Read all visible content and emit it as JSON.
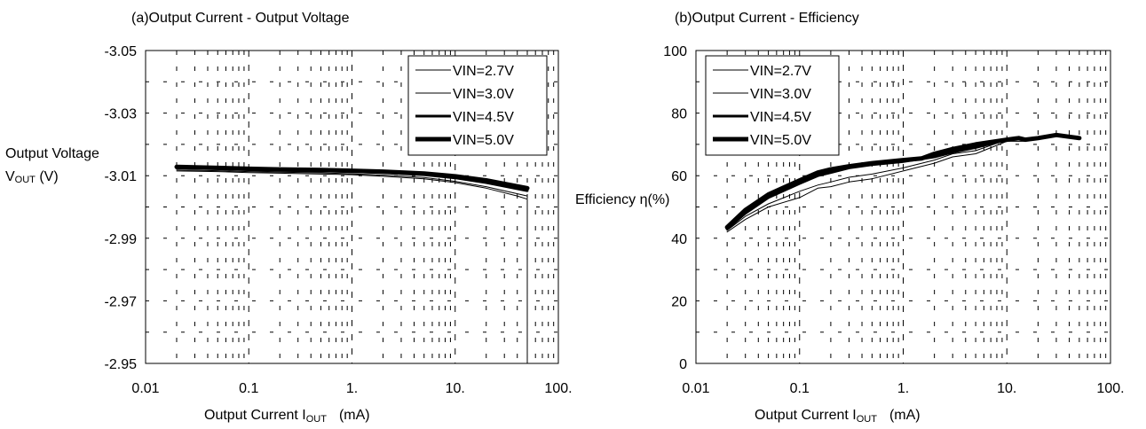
{
  "chart_data": [
    {
      "type": "line",
      "title": "(a)Output Current - Output Voltage",
      "ylabel_line1": "Output Voltage",
      "ylabel_line2_main": "V",
      "ylabel_line2_sub": "OUT",
      "ylabel_line2_tail": " (V)",
      "xlabel_main": "Output Current I",
      "xlabel_sub": "OUT",
      "xlabel_tail": "(mA)",
      "x_scale": "log",
      "xlim": [
        0.01,
        100
      ],
      "ylim": [
        -3.05,
        -2.95
      ],
      "y_reversed": true,
      "xticks": [
        0.01,
        0.1,
        1,
        10,
        100
      ],
      "xtick_labels": [
        "0.01",
        "0.1",
        "1.",
        "10.",
        "100."
      ],
      "yticks": [
        -3.05,
        -3.03,
        -3.01,
        -2.99,
        -2.97,
        -2.95
      ],
      "ytick_labels": [
        "-3.05",
        "-3.03",
        "-3.01",
        "-2.99",
        "-2.97",
        "-2.95"
      ],
      "grid": true,
      "legend_position": "top-right",
      "series": [
        {
          "name": "VIN=2.7V",
          "stroke_width": 1,
          "x": [
            0.02,
            0.05,
            0.1,
            0.2,
            0.5,
            1,
            2,
            5,
            10,
            20,
            40,
            50,
            50
          ],
          "y": [
            -3.0115,
            -3.0113,
            -3.011,
            -3.0108,
            -3.0105,
            -3.0103,
            -3.0098,
            -3.009,
            -3.0078,
            -3.006,
            -3.0035,
            -3.0025,
            -2.95
          ]
        },
        {
          "name": "VIN=3.0V",
          "stroke_width": 1,
          "x": [
            0.02,
            0.05,
            0.1,
            0.2,
            0.5,
            1,
            2,
            5,
            10,
            20,
            50
          ],
          "y": [
            -3.0118,
            -3.0116,
            -3.0113,
            -3.0111,
            -3.0109,
            -3.0106,
            -3.0102,
            -3.0094,
            -3.0082,
            -3.0065,
            -3.0035
          ]
        },
        {
          "name": "VIN=4.5V",
          "stroke_width": 3,
          "x": [
            0.02,
            0.05,
            0.1,
            0.2,
            0.5,
            1,
            2,
            5,
            10,
            20,
            50
          ],
          "y": [
            -3.0125,
            -3.0122,
            -3.0119,
            -3.0117,
            -3.0115,
            -3.0113,
            -3.011,
            -3.0103,
            -3.0093,
            -3.0078,
            -3.0052
          ]
        },
        {
          "name": "VIN=5.0V",
          "stroke_width": 5,
          "x": [
            0.02,
            0.05,
            0.1,
            0.2,
            0.5,
            1,
            2,
            5,
            10,
            20,
            50
          ],
          "y": [
            -3.0128,
            -3.0125,
            -3.0122,
            -3.012,
            -3.0118,
            -3.0116,
            -3.0113,
            -3.0107,
            -3.0098,
            -3.0085,
            -3.006
          ]
        }
      ]
    },
    {
      "type": "line",
      "title": "(b)Output Current - Efficiency",
      "ylabel": "Efficiency η(%)",
      "xlabel_main": "Output Current I",
      "xlabel_sub": "OUT",
      "xlabel_tail": "(mA)",
      "x_scale": "log",
      "xlim": [
        0.01,
        100
      ],
      "ylim": [
        0,
        100
      ],
      "xticks": [
        0.01,
        0.1,
        1,
        10,
        100
      ],
      "xtick_labels": [
        "0.01",
        "0.1",
        "1.",
        "10.",
        "100."
      ],
      "yticks": [
        0,
        20,
        40,
        60,
        80,
        100
      ],
      "ytick_labels": [
        "0",
        "20",
        "40",
        "60",
        "80",
        "100"
      ],
      "grid": true,
      "legend_position": "top-left",
      "series": [
        {
          "name": "VIN=2.7V",
          "stroke_width": 1,
          "x": [
            0.02,
            0.03,
            0.05,
            0.1,
            0.15,
            0.2,
            0.3,
            0.5,
            1,
            2,
            3,
            5,
            10,
            15,
            20,
            30,
            50
          ],
          "y": [
            42,
            46,
            50,
            53,
            56,
            56.5,
            58,
            59,
            61.5,
            64,
            66,
            67,
            71,
            71,
            72,
            73,
            72
          ]
        },
        {
          "name": "VIN=3.0V",
          "stroke_width": 1,
          "x": [
            0.02,
            0.03,
            0.05,
            0.1,
            0.15,
            0.2,
            0.3,
            0.5,
            1,
            2,
            3,
            5,
            10,
            15,
            20,
            30,
            50
          ],
          "y": [
            42.5,
            47,
            51,
            55,
            57,
            58,
            59.5,
            60.5,
            62.5,
            65,
            67,
            68,
            71.5,
            71.5,
            72,
            73,
            72
          ]
        },
        {
          "name": "VIN=4.5V",
          "stroke_width": 3,
          "x": [
            0.02,
            0.03,
            0.05,
            0.1,
            0.15,
            0.2,
            0.3,
            0.5,
            1,
            2,
            3,
            5,
            10,
            13,
            15,
            20,
            30,
            50
          ],
          "y": [
            43,
            48,
            53,
            57.5,
            60,
            61,
            62.5,
            63.5,
            64.5,
            66,
            67.5,
            69,
            71.5,
            72,
            71.5,
            72,
            73,
            72
          ]
        },
        {
          "name": "VIN=5.0V",
          "stroke_width": 5,
          "x": [
            0.02,
            0.03,
            0.05,
            0.1,
            0.15,
            0.2,
            0.3,
            0.5,
            1,
            1.5,
            2,
            3,
            5,
            10,
            13,
            15,
            20,
            30,
            50
          ],
          "y": [
            43.5,
            49,
            54,
            58.5,
            61,
            62,
            63,
            64,
            65,
            65.5,
            67,
            68.5,
            70,
            71.5,
            72,
            71.5,
            72,
            73,
            72
          ]
        }
      ]
    }
  ]
}
